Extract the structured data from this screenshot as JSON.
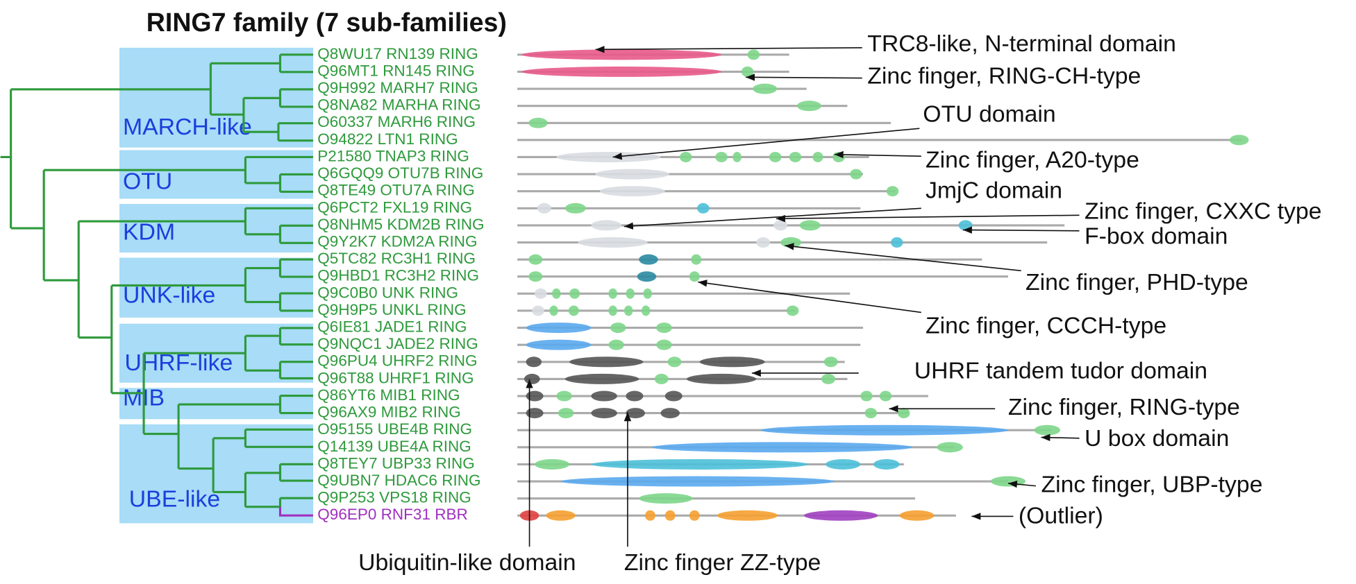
{
  "title": "RING7 family (7 sub-families)",
  "groups": [
    "MARCH-like",
    "OTU",
    "KDM",
    "UNK-like",
    "UHRF-like",
    "MIB",
    "UBE-like"
  ],
  "proteins": [
    "Q8WU17 RN139 RING",
    "Q96MT1 RN145 RING",
    "Q9H992 MARH7 RING",
    "Q8NA82 MARHA RING",
    "O60337 MARH6 RING",
    "O94822 LTN1 RING",
    "P21580 TNAP3 RING",
    "Q6GQQ9 OTU7B RING",
    "Q8TE49 OTU7A RING",
    "Q6PCT2 FXL19 RING",
    "Q8NHM5 KDM2B RING",
    "Q9Y2K7 KDM2A RING",
    "Q5TC82 RC3H1 RING",
    "Q9HBD1 RC3H2 RING",
    "Q9C0B0 UNK RING",
    "Q9H9P5 UNKL RING",
    "Q6IE81 JADE1 RING",
    "Q9NQC1 JADE2 RING",
    "Q96PU4 UHRF2 RING",
    "Q96T88 UHRF1 RING",
    "Q86YT6 MIB1 RING",
    "Q96AX9 MIB2 RING",
    "O95155 UBE4B RING",
    "Q14139 UBE4A RING",
    "Q8TEY7 UBP33 RING",
    "Q9UBN7 HDAC6 RING",
    "Q9P253 VPS18 RING",
    "Q96EP0 RNF31 RBR"
  ],
  "annotations": [
    "TRC8-like, N-terminal domain",
    "Zinc finger, RING-CH-type",
    "OTU domain",
    "Zinc finger, A20-type",
    "JmjC domain",
    "Zinc finger, CXXC type",
    "F-box domain",
    "Zinc finger, PHD-type",
    "Zinc finger, CCCH-type",
    "UHRF tandem tudor domain",
    "Zinc finger, RING-type",
    "U box domain",
    "Zinc finger, UBP-type",
    "(Outlier)",
    "Ubiquitin-like domain",
    "Zinc finger ZZ-type"
  ]
}
